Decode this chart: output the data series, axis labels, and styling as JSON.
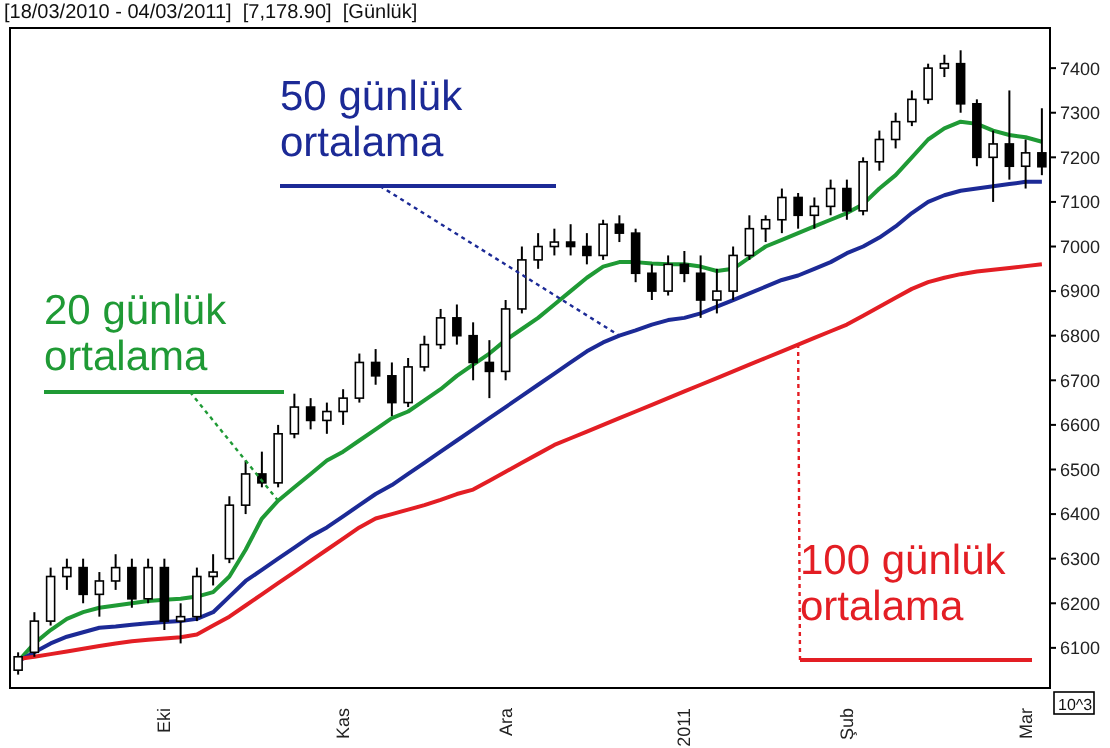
{
  "chart_data": {
    "type": "candlestick",
    "title": "[18/03/2010 - 04/03/2011]  [7,178.90]  [Günlük]",
    "categories": [
      null,
      null,
      null,
      null,
      null,
      null,
      null,
      null,
      null,
      "Eki",
      null,
      null,
      null,
      null,
      null,
      null,
      null,
      null,
      null,
      null,
      "Kas",
      null,
      null,
      null,
      null,
      null,
      null,
      null,
      null,
      null,
      "Ara",
      null,
      null,
      null,
      null,
      null,
      null,
      null,
      null,
      null,
      null,
      "2011",
      null,
      null,
      null,
      null,
      null,
      null,
      null,
      null,
      null,
      "Şub",
      null,
      null,
      null,
      null,
      null,
      null,
      null,
      null,
      null,
      null,
      "Mar",
      null
    ],
    "ohlc": [
      [
        6050,
        6090,
        6040,
        6080
      ],
      [
        6090,
        6180,
        6080,
        6160
      ],
      [
        6160,
        6280,
        6150,
        6260
      ],
      [
        6260,
        6300,
        6230,
        6280
      ],
      [
        6280,
        6300,
        6200,
        6220
      ],
      [
        6220,
        6270,
        6170,
        6250
      ],
      [
        6250,
        6310,
        6230,
        6280
      ],
      [
        6280,
        6300,
        6190,
        6210
      ],
      [
        6210,
        6300,
        6200,
        6280
      ],
      [
        6280,
        6300,
        6140,
        6160
      ],
      [
        6160,
        6200,
        6110,
        6170
      ],
      [
        6170,
        6280,
        6160,
        6260
      ],
      [
        6260,
        6310,
        6240,
        6270
      ],
      [
        6300,
        6440,
        6290,
        6420
      ],
      [
        6420,
        6520,
        6400,
        6490
      ],
      [
        6490,
        6540,
        6460,
        6470
      ],
      [
        6470,
        6600,
        6460,
        6580
      ],
      [
        6580,
        6670,
        6570,
        6640
      ],
      [
        6640,
        6660,
        6590,
        6610
      ],
      [
        6610,
        6650,
        6580,
        6630
      ],
      [
        6630,
        6680,
        6600,
        6660
      ],
      [
        6660,
        6760,
        6650,
        6740
      ],
      [
        6740,
        6770,
        6690,
        6710
      ],
      [
        6710,
        6740,
        6620,
        6650
      ],
      [
        6650,
        6750,
        6640,
        6730
      ],
      [
        6730,
        6800,
        6720,
        6780
      ],
      [
        6780,
        6860,
        6770,
        6840
      ],
      [
        6840,
        6870,
        6780,
        6800
      ],
      [
        6800,
        6830,
        6700,
        6740
      ],
      [
        6740,
        6790,
        6660,
        6720
      ],
      [
        6720,
        6880,
        6700,
        6860
      ],
      [
        6860,
        7000,
        6850,
        6970
      ],
      [
        6970,
        7030,
        6950,
        7000
      ],
      [
        7000,
        7040,
        6980,
        7010
      ],
      [
        7010,
        7050,
        6980,
        7000
      ],
      [
        7000,
        7030,
        6960,
        6980
      ],
      [
        6980,
        7060,
        6970,
        7050
      ],
      [
        7050,
        7070,
        7010,
        7030
      ],
      [
        7030,
        7040,
        6920,
        6940
      ],
      [
        6940,
        6960,
        6880,
        6900
      ],
      [
        6900,
        6980,
        6890,
        6960
      ],
      [
        6960,
        6990,
        6920,
        6940
      ],
      [
        6940,
        6980,
        6840,
        6880
      ],
      [
        6880,
        6950,
        6850,
        6900
      ],
      [
        6900,
        7000,
        6880,
        6980
      ],
      [
        6980,
        7070,
        6970,
        7040
      ],
      [
        7040,
        7070,
        7010,
        7060
      ],
      [
        7060,
        7130,
        7030,
        7110
      ],
      [
        7110,
        7120,
        7040,
        7070
      ],
      [
        7070,
        7110,
        7040,
        7090
      ],
      [
        7090,
        7150,
        7070,
        7130
      ],
      [
        7130,
        7150,
        7060,
        7080
      ],
      [
        7080,
        7200,
        7070,
        7190
      ],
      [
        7190,
        7260,
        7170,
        7240
      ],
      [
        7240,
        7300,
        7220,
        7280
      ],
      [
        7280,
        7350,
        7270,
        7330
      ],
      [
        7330,
        7410,
        7320,
        7400
      ],
      [
        7400,
        7430,
        7380,
        7410
      ],
      [
        7410,
        7440,
        7300,
        7320
      ],
      [
        7320,
        7330,
        7180,
        7200
      ],
      [
        7200,
        7260,
        7100,
        7230
      ],
      [
        7230,
        7350,
        7150,
        7180
      ],
      [
        7180,
        7240,
        7130,
        7210
      ],
      [
        7210,
        7310,
        7160,
        7178.9
      ]
    ],
    "series": [
      {
        "name": "20 günlük ortalama",
        "type": "line",
        "color": "#1f9a35",
        "values": [
          6070,
          6110,
          6140,
          6165,
          6180,
          6190,
          6195,
          6200,
          6205,
          6208,
          6210,
          6215,
          6225,
          6260,
          6320,
          6390,
          6430,
          6460,
          6490,
          6520,
          6540,
          6565,
          6590,
          6615,
          6630,
          6655,
          6680,
          6710,
          6735,
          6760,
          6790,
          6815,
          6840,
          6870,
          6900,
          6930,
          6955,
          6965,
          6965,
          6962,
          6960,
          6960,
          6955,
          6945,
          6950,
          6975,
          7000,
          7015,
          7030,
          7045,
          7060,
          7075,
          7095,
          7130,
          7160,
          7200,
          7240,
          7265,
          7280,
          7275,
          7260,
          7250,
          7245,
          7235
        ]
      },
      {
        "name": "50 günlük ortalama",
        "type": "line",
        "color": "#1c2a96",
        "values": [
          6070,
          6090,
          6110,
          6125,
          6135,
          6145,
          6148,
          6152,
          6155,
          6158,
          6160,
          6165,
          6180,
          6215,
          6250,
          6275,
          6300,
          6325,
          6350,
          6370,
          6395,
          6420,
          6445,
          6465,
          6490,
          6515,
          6540,
          6565,
          6590,
          6615,
          6640,
          6665,
          6690,
          6715,
          6740,
          6765,
          6785,
          6800,
          6812,
          6825,
          6835,
          6840,
          6850,
          6865,
          6880,
          6895,
          6910,
          6925,
          6935,
          6950,
          6965,
          6985,
          7000,
          7020,
          7045,
          7075,
          7100,
          7115,
          7125,
          7130,
          7135,
          7140,
          7145,
          7145
        ]
      },
      {
        "name": "100 günlük ortalama",
        "type": "line",
        "color": "#e31e24",
        "values": [
          6075,
          6080,
          6086,
          6092,
          6098,
          6104,
          6110,
          6115,
          6118,
          6121,
          6124,
          6130,
          6150,
          6170,
          6195,
          6220,
          6245,
          6270,
          6295,
          6320,
          6345,
          6370,
          6390,
          6400,
          6410,
          6420,
          6432,
          6445,
          6455,
          6475,
          6495,
          6515,
          6535,
          6555,
          6570,
          6585,
          6600,
          6615,
          6630,
          6645,
          6660,
          6675,
          6690,
          6705,
          6720,
          6735,
          6750,
          6765,
          6780,
          6795,
          6810,
          6825,
          6845,
          6865,
          6885,
          6905,
          6920,
          6930,
          6938,
          6944,
          6948,
          6952,
          6956,
          6960
        ]
      }
    ],
    "ylim": [
      6010,
      7490
    ],
    "yticks": [
      6100,
      6200,
      6300,
      6400,
      6500,
      6600,
      6700,
      6800,
      6900,
      7000,
      7100,
      7200,
      7300,
      7400
    ],
    "annotations": [
      "10^3"
    ],
    "grid": false,
    "legend": false,
    "marker": "none",
    "line_style": "solid"
  }
}
